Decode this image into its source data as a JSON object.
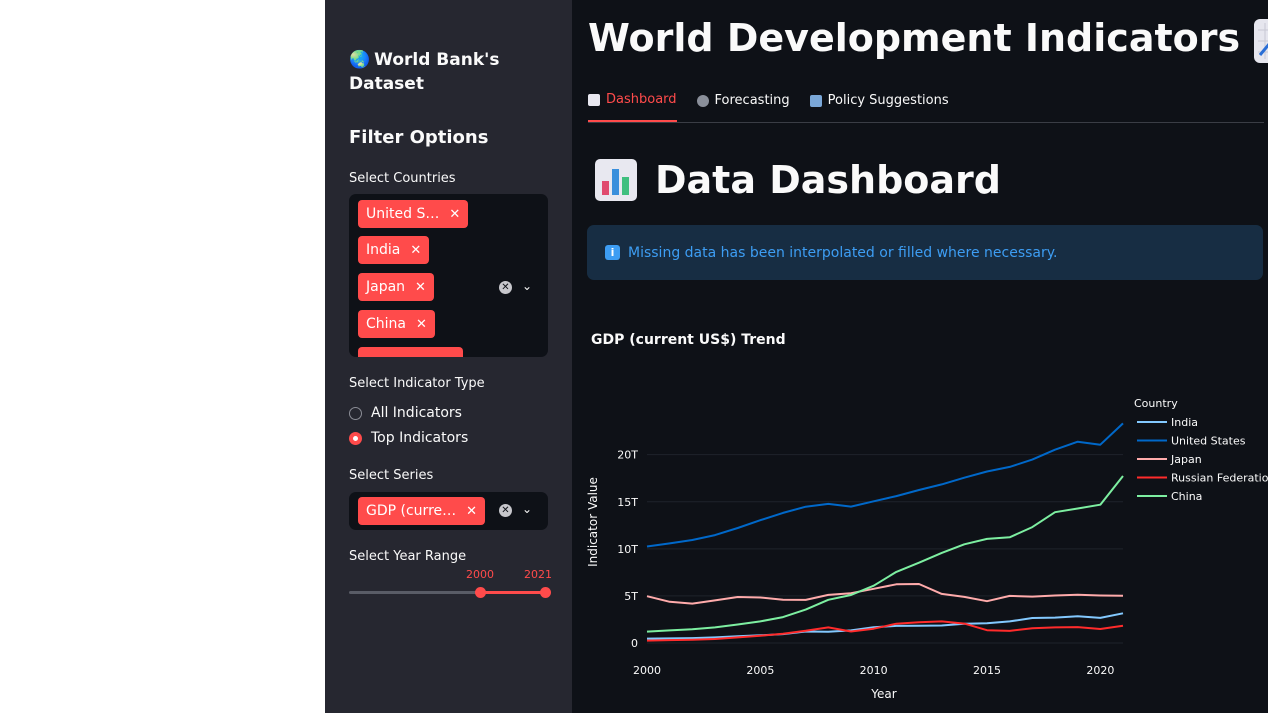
{
  "sidebar": {
    "title": "World Bank's Dataset",
    "filter_heading": "Filter Options",
    "countries_label": "Select Countries",
    "countries_chips": [
      "United S…",
      "India",
      "Japan",
      "China"
    ],
    "indicator_label": "Select Indicator Type",
    "indicator_options": [
      "All Indicators",
      "Top Indicators"
    ],
    "indicator_selected": "Top Indicators",
    "series_label": "Select Series",
    "series_chip": "GDP (curre…",
    "year_label": "Select Year Range",
    "year_min": "2000",
    "year_max": "2021"
  },
  "main": {
    "title": "World Development Indicators",
    "tabs": [
      "Dashboard",
      "Forecasting",
      "Policy Suggestions"
    ],
    "active_tab": "Dashboard",
    "dashboard_title": "Data Dashboard",
    "info_message": "Missing data has been interpolated or filled where necessary."
  },
  "colors": {
    "accent": "#ff4b4b",
    "sidebar_bg": "#262730",
    "main_bg": "#0e1117",
    "info_bg": "#172d43",
    "info_text": "#3d9df3"
  },
  "chart_data": {
    "type": "line",
    "title": "GDP (current US$) Trend",
    "xlabel": "Year",
    "ylabel": "Indicator Value",
    "legend_title": "Country",
    "xlim": [
      2000,
      2021
    ],
    "ylim": [
      0,
      24
    ],
    "xticks": [
      2000,
      2005,
      2010,
      2015,
      2020
    ],
    "yticks": [
      0,
      5,
      10,
      15,
      20
    ],
    "ytick_labels": [
      "0",
      "5T",
      "10T",
      "15T",
      "20T"
    ],
    "x": [
      2000,
      2001,
      2002,
      2003,
      2004,
      2005,
      2006,
      2007,
      2008,
      2009,
      2010,
      2011,
      2012,
      2013,
      2014,
      2015,
      2016,
      2017,
      2018,
      2019,
      2020,
      2021
    ],
    "series": [
      {
        "name": "India",
        "color": "#83c9ff",
        "values": [
          0.47,
          0.49,
          0.52,
          0.6,
          0.71,
          0.82,
          0.94,
          1.22,
          1.2,
          1.34,
          1.68,
          1.82,
          1.83,
          1.86,
          2.04,
          2.1,
          2.29,
          2.65,
          2.7,
          2.84,
          2.67,
          3.15
        ]
      },
      {
        "name": "United States",
        "color": "#0068c9",
        "values": [
          10.25,
          10.58,
          10.94,
          11.46,
          12.21,
          13.04,
          13.82,
          14.47,
          14.77,
          14.48,
          15.05,
          15.6,
          16.25,
          16.84,
          17.55,
          18.21,
          18.7,
          19.48,
          20.53,
          21.38,
          21.06,
          23.32
        ]
      },
      {
        "name": "Japan",
        "color": "#ffabab",
        "values": [
          4.97,
          4.37,
          4.18,
          4.52,
          4.89,
          4.83,
          4.6,
          4.58,
          5.11,
          5.29,
          5.76,
          6.23,
          6.27,
          5.21,
          4.9,
          4.44,
          5.0,
          4.93,
          5.04,
          5.12,
          5.04,
          5.01
        ]
      },
      {
        "name": "Russian Federation",
        "color": "#ff2b2b",
        "values": [
          0.26,
          0.31,
          0.35,
          0.43,
          0.59,
          0.76,
          0.99,
          1.3,
          1.66,
          1.22,
          1.52,
          2.05,
          2.21,
          2.29,
          2.06,
          1.36,
          1.28,
          1.57,
          1.66,
          1.69,
          1.49,
          1.84
        ]
      },
      {
        "name": "China",
        "color": "#7defa1",
        "values": [
          1.21,
          1.34,
          1.47,
          1.66,
          1.96,
          2.29,
          2.75,
          3.55,
          4.59,
          5.1,
          6.09,
          7.55,
          8.53,
          9.57,
          10.48,
          11.06,
          11.23,
          12.31,
          13.89,
          14.28,
          14.69,
          17.73
        ]
      }
    ]
  }
}
